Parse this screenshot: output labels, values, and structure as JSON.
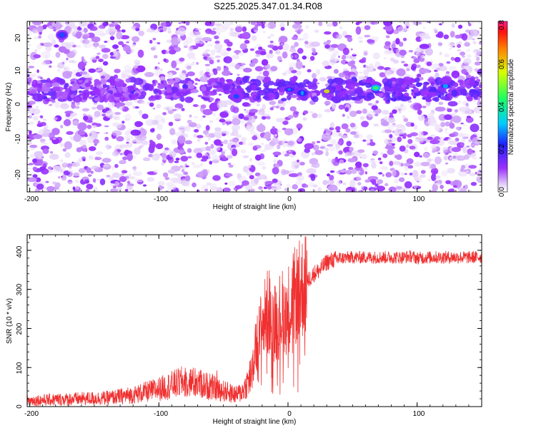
{
  "title": "S225.2025.347.01.34.R08",
  "chart_data": [
    {
      "type": "heatmap",
      "xlabel": "Height of straight line (km)",
      "ylabel": "Frequency (Hz)",
      "xlim": [
        -202,
        150
      ],
      "ylim": [
        -25,
        25
      ],
      "x_ticks": [
        -200,
        -100,
        0,
        100
      ],
      "y_ticks": [
        -20,
        -10,
        0,
        10,
        20
      ],
      "colorbar": {
        "label": "Normalized spectral amplitude",
        "range": [
          0,
          0.8
        ],
        "ticks": [
          "0.0",
          "0.2",
          "0.4",
          "0.6",
          "0.8"
        ]
      },
      "signal_band_frequency_hz": 5,
      "gap_heights_km": [
        25,
        -110
      ],
      "peaks": [
        {
          "x": -175,
          "y": 21,
          "amp": 0.25
        },
        {
          "x": -40,
          "y": 3,
          "amp": 0.25
        },
        {
          "x": 1,
          "y": 5,
          "amp": 0.28
        },
        {
          "x": 11,
          "y": 4,
          "amp": 0.3
        },
        {
          "x": 30,
          "y": 4.5,
          "amp": 0.6
        },
        {
          "x": 68,
          "y": 5.5,
          "amp": 0.45
        },
        {
          "x": 122,
          "y": 6,
          "amp": 0.3
        }
      ]
    },
    {
      "type": "line",
      "xlabel": "Height of straight line (km)",
      "ylabel": "SNR (10 * v/v)",
      "xlim": [
        -202,
        150
      ],
      "ylim": [
        0,
        440
      ],
      "x_ticks": [
        -200,
        -100,
        0,
        100
      ],
      "y_ticks": [
        0,
        100,
        200,
        300,
        400
      ],
      "color": "#f03030",
      "series": [
        {
          "name": "SNR",
          "x": [
            -202,
            -180,
            -160,
            -140,
            -120,
            -100,
            -90,
            -80,
            -70,
            -60,
            -50,
            -40,
            -35,
            -30,
            -25,
            -20,
            -15,
            -10,
            -5,
            0,
            5,
            10,
            15,
            20,
            25,
            30,
            35,
            40,
            50,
            60,
            70,
            80,
            90,
            95,
            100,
            110,
            120,
            130,
            140,
            150
          ],
          "y": [
            15,
            18,
            20,
            22,
            30,
            45,
            55,
            65,
            60,
            50,
            40,
            30,
            40,
            70,
            140,
            210,
            245,
            215,
            240,
            250,
            280,
            300,
            320,
            340,
            350,
            370,
            375,
            380,
            382,
            382,
            382,
            382,
            382,
            385,
            380,
            382,
            382,
            382,
            382,
            383
          ]
        }
      ]
    }
  ]
}
